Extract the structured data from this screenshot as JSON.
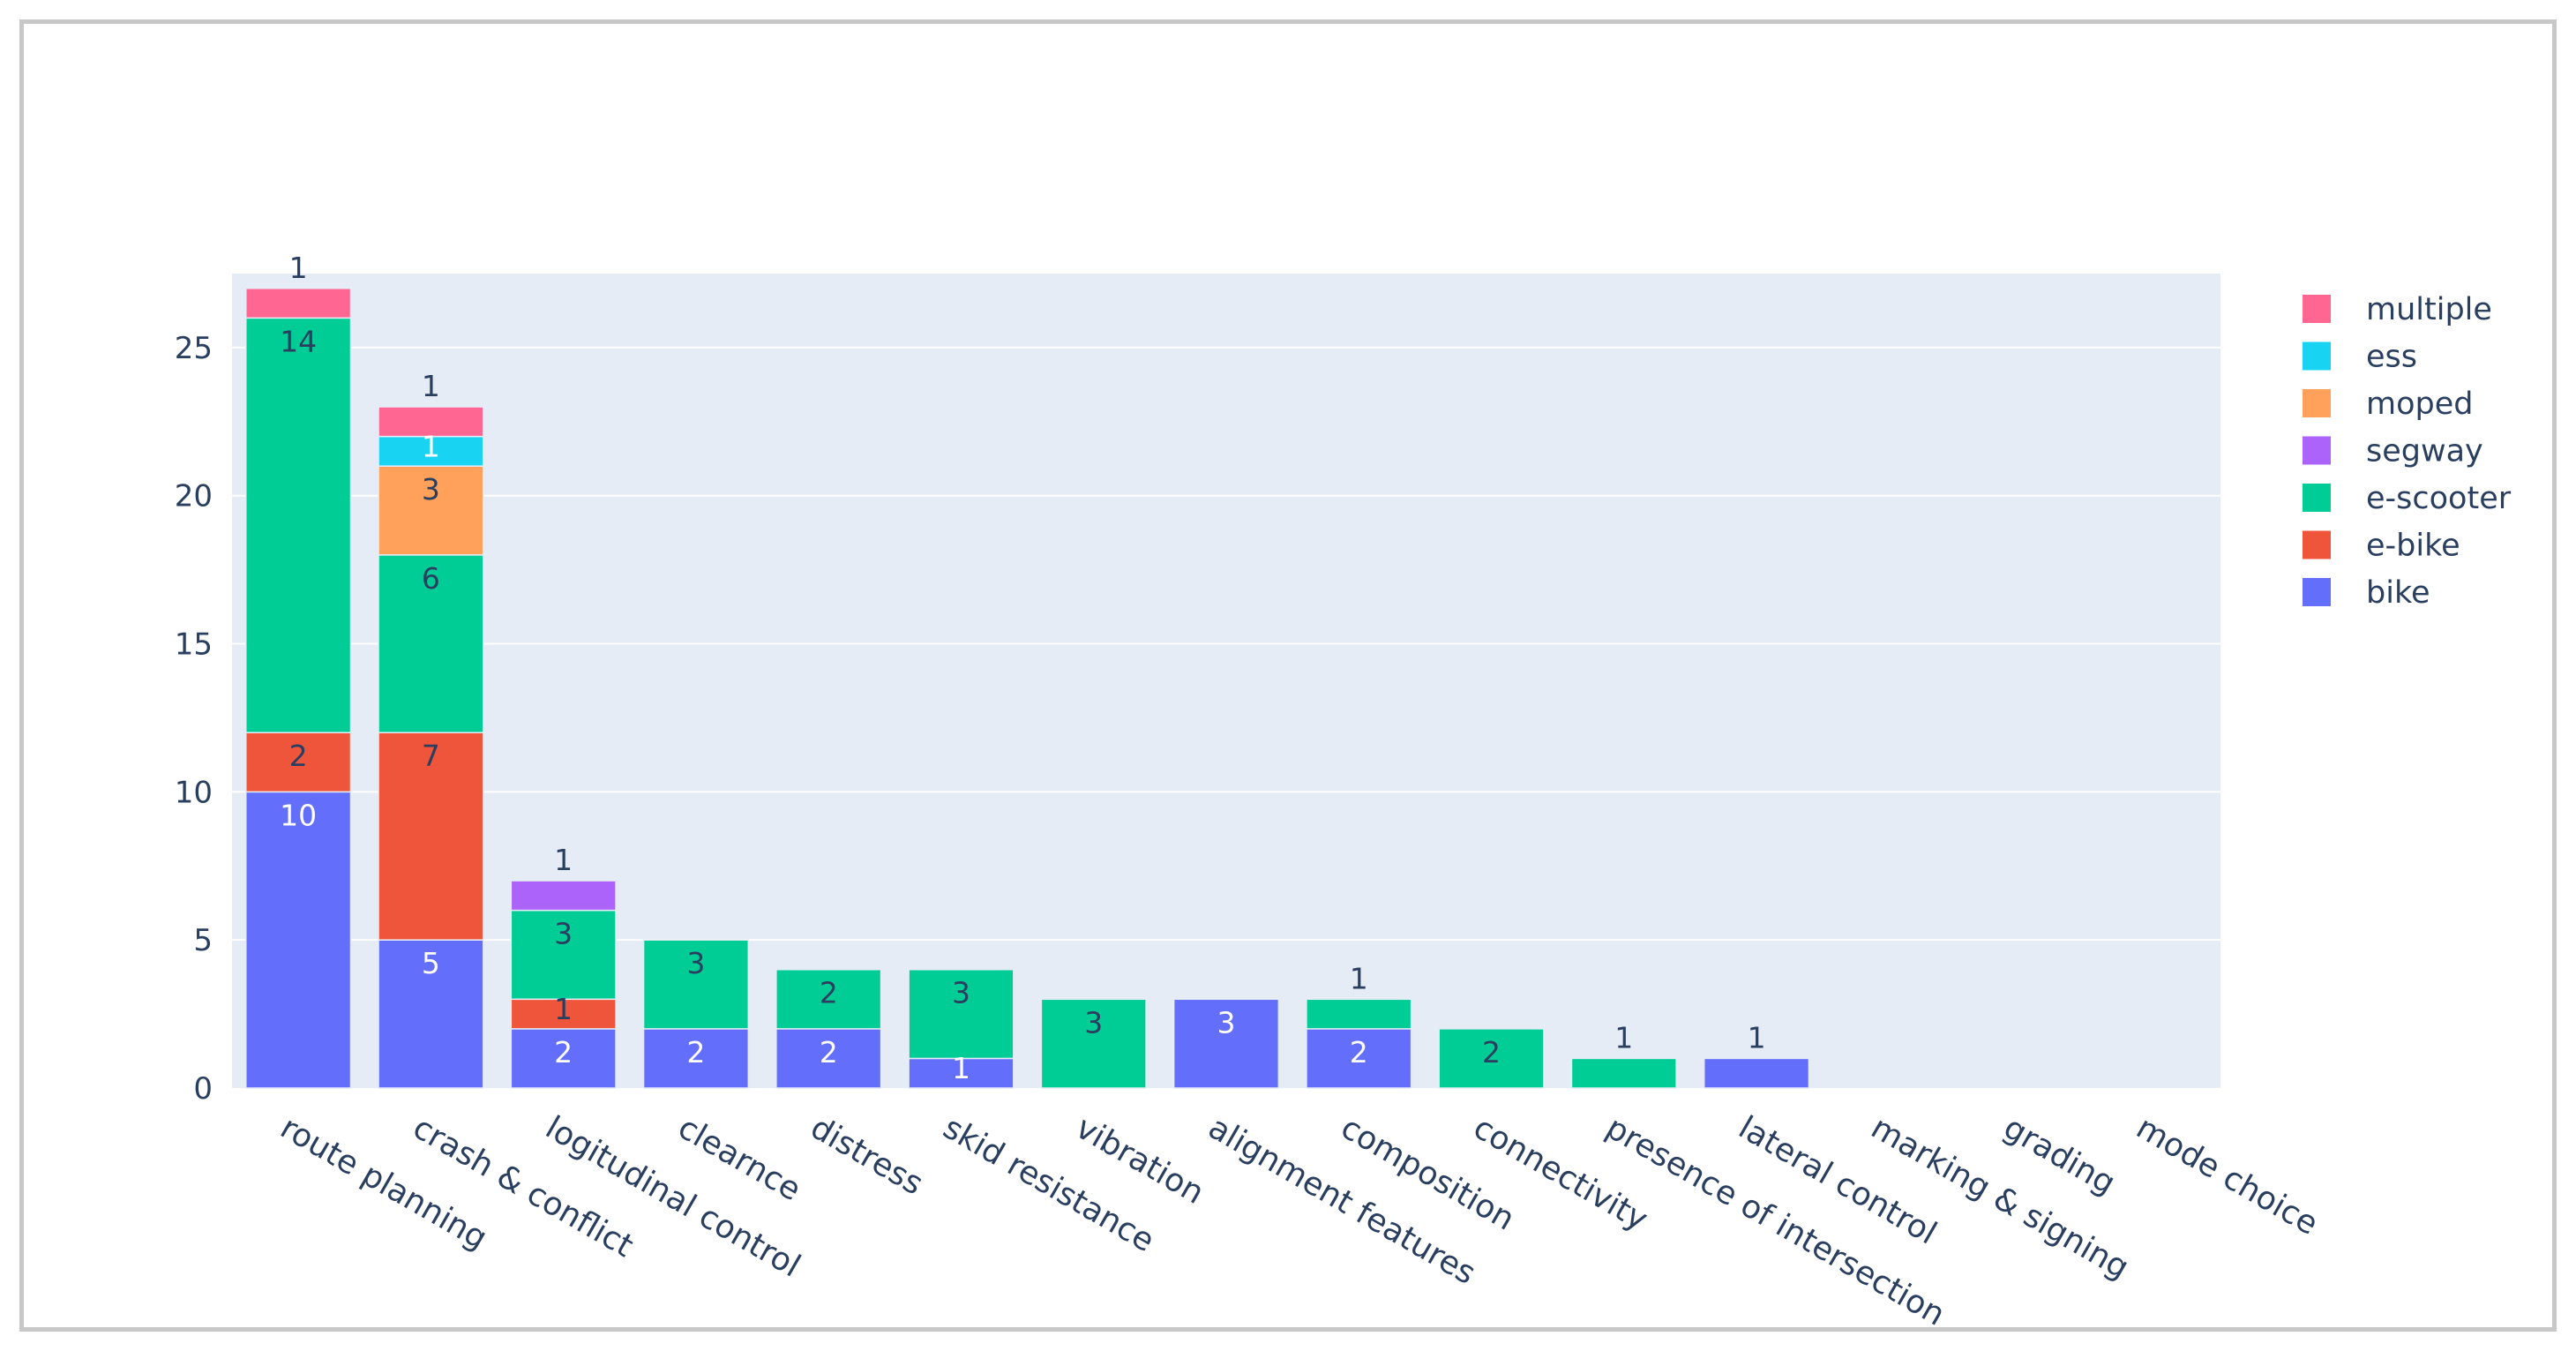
{
  "chart_data": {
    "type": "bar",
    "barmode": "stack",
    "title": "",
    "xlabel": "",
    "ylabel": "",
    "ylim": [
      0,
      27.5
    ],
    "yticks": [
      0,
      5,
      10,
      15,
      20,
      25
    ],
    "grid": true,
    "legend_position": "right",
    "categories": [
      "route planning",
      "crash & conflict",
      "logitudinal control",
      "clearnce",
      "distress",
      "skid resistance",
      "vibration",
      "alignment features",
      "composition",
      "connectivity",
      "presence of intersection",
      "lateral control",
      "marking & signing",
      "grading",
      "mode choice"
    ],
    "series": [
      {
        "name": "bike",
        "color": "#636efa",
        "values": [
          10,
          5,
          2,
          2,
          2,
          1,
          0,
          3,
          2,
          0,
          0,
          1,
          0,
          0,
          0
        ]
      },
      {
        "name": "e-bike",
        "color": "#ef553b",
        "values": [
          2,
          7,
          1,
          0,
          0,
          0,
          0,
          0,
          0,
          0,
          0,
          0,
          0,
          0,
          0
        ]
      },
      {
        "name": "e-scooter",
        "color": "#00cc96",
        "values": [
          14,
          6,
          3,
          3,
          2,
          3,
          3,
          0,
          1,
          2,
          1,
          0,
          0,
          0,
          0
        ]
      },
      {
        "name": "segway",
        "color": "#ab63fa",
        "values": [
          0,
          0,
          1,
          0,
          0,
          0,
          0,
          0,
          0,
          0,
          0,
          0,
          0,
          0,
          0
        ]
      },
      {
        "name": "moped",
        "color": "#ffa15a",
        "values": [
          0,
          3,
          0,
          0,
          0,
          0,
          0,
          0,
          0,
          0,
          0,
          0,
          0,
          0,
          0
        ]
      },
      {
        "name": "ess",
        "color": "#19d3f3",
        "values": [
          0,
          1,
          0,
          0,
          0,
          0,
          0,
          0,
          0,
          0,
          0,
          0,
          0,
          0,
          0
        ]
      },
      {
        "name": "multiple",
        "color": "#ff6692",
        "values": [
          1,
          1,
          0,
          0,
          0,
          0,
          0,
          0,
          0,
          0,
          0,
          0,
          0,
          0,
          0
        ]
      }
    ],
    "legend_order": [
      "multiple",
      "ess",
      "moped",
      "segway",
      "e-scooter",
      "e-bike",
      "bike"
    ],
    "plot_background": "#e5ecf6",
    "gridline_color": "#ffffff",
    "text_color": "#2a3f5f"
  }
}
